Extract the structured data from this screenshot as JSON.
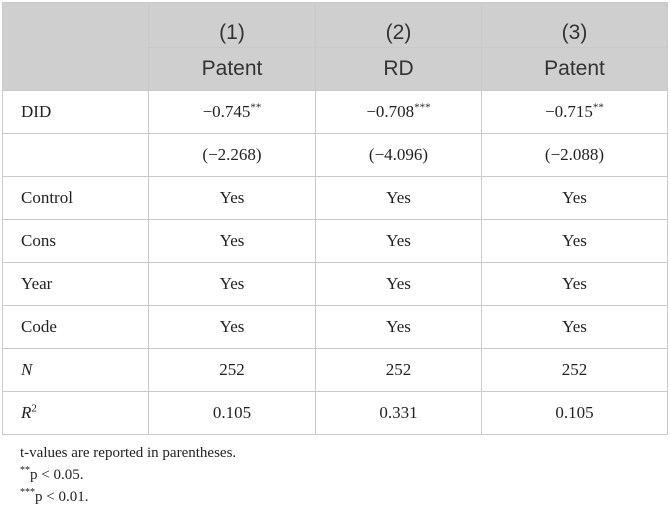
{
  "table": {
    "header_numbers": [
      "(1)",
      "(2)",
      "(3)"
    ],
    "header_vars": [
      "Patent",
      "RD",
      "Patent"
    ],
    "rows": [
      {
        "label": "DID",
        "cells": [
          {
            "v": "−0.745",
            "sup": "**"
          },
          {
            "v": "−0.708",
            "sup": "***"
          },
          {
            "v": "−0.715",
            "sup": "**"
          }
        ]
      },
      {
        "label": "",
        "cells": [
          {
            "v": "(−2.268)",
            "sup": ""
          },
          {
            "v": "(−4.096)",
            "sup": ""
          },
          {
            "v": "(−2.088)",
            "sup": ""
          }
        ]
      },
      {
        "label": "Control",
        "cells": [
          {
            "v": "Yes"
          },
          {
            "v": "Yes"
          },
          {
            "v": "Yes"
          }
        ]
      },
      {
        "label": "Cons",
        "cells": [
          {
            "v": "Yes"
          },
          {
            "v": "Yes"
          },
          {
            "v": "Yes"
          }
        ]
      },
      {
        "label": "Year",
        "cells": [
          {
            "v": "Yes"
          },
          {
            "v": "Yes"
          },
          {
            "v": "Yes"
          }
        ]
      },
      {
        "label": "Code",
        "cells": [
          {
            "v": "Yes"
          },
          {
            "v": "Yes"
          },
          {
            "v": "Yes"
          }
        ]
      },
      {
        "label": "N",
        "cells": [
          {
            "v": "252"
          },
          {
            "v": "252"
          },
          {
            "v": "252"
          }
        ]
      },
      {
        "label": "R",
        "label_sup": "2",
        "cells": [
          {
            "v": "0.105"
          },
          {
            "v": "0.331"
          },
          {
            "v": "0.105"
          }
        ]
      }
    ]
  },
  "notes": {
    "line1": "t-values are reported in parentheses.",
    "line2_sup": "**",
    "line2": "p < 0.05.",
    "line3_sup": "***",
    "line3": "p < 0.01."
  }
}
